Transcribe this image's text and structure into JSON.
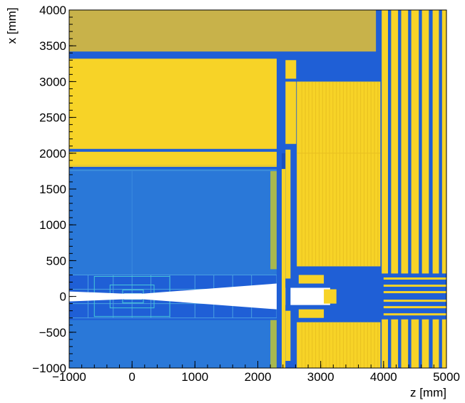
{
  "chart_data": {
    "type": "heatmap",
    "title": "",
    "xlabel": "z [mm]",
    "ylabel": "x [mm]",
    "xlim": [
      -1000,
      5000
    ],
    "ylim": [
      -1000,
      4000
    ],
    "x_ticks": [
      -1000,
      0,
      1000,
      2000,
      3000,
      4000,
      5000
    ],
    "y_ticks": [
      -1000,
      -500,
      0,
      500,
      1000,
      1500,
      2000,
      2500,
      3000,
      3500,
      4000
    ],
    "x_tick_labels": [
      "−1000",
      "0",
      "1000",
      "2000",
      "3000",
      "4000",
      "5000"
    ],
    "y_tick_labels": [
      "−1000",
      "−500",
      "0",
      "500",
      "1000",
      "1500",
      "2000",
      "2500",
      "3000",
      "3500",
      "4000"
    ],
    "colors": {
      "background": "#1f5fd6",
      "iron": "#c8b24a",
      "yellow": "#f7d327",
      "blue_dark": "#1f5fd6",
      "blue_light": "#2a78d8",
      "green": "#a8b84e",
      "cyan": "#47c8d8",
      "beam_pipe": "#ffffff"
    }
  }
}
